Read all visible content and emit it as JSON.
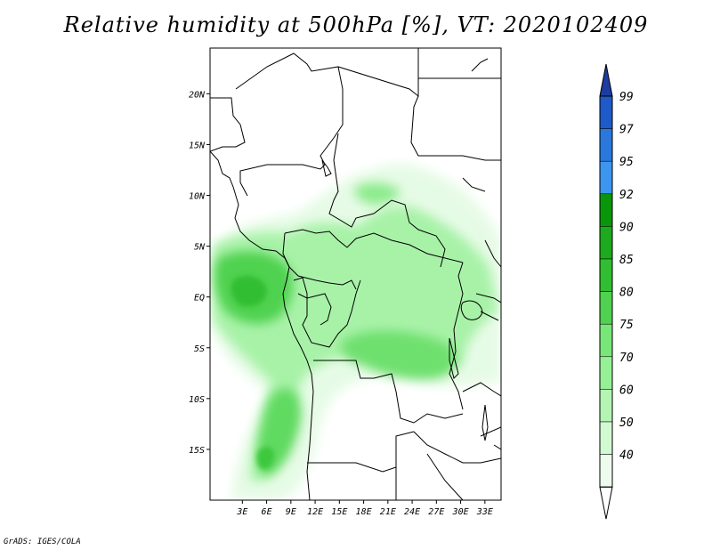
{
  "title": "Relative humidity at 500hPa [%], VT: 2020102409",
  "credit": "GrADS: IGES/COLA",
  "map": {
    "lon_range": [
      -1,
      35
    ],
    "lat_range": [
      -20,
      24.5
    ],
    "lat_ticks": [
      {
        "value": 20,
        "label": "20N"
      },
      {
        "value": 15,
        "label": "15N"
      },
      {
        "value": 10,
        "label": "10N"
      },
      {
        "value": 5,
        "label": "5N"
      },
      {
        "value": 0,
        "label": "EQ"
      },
      {
        "value": -5,
        "label": "5S"
      },
      {
        "value": -10,
        "label": "10S"
      },
      {
        "value": -15,
        "label": "15S"
      }
    ],
    "lon_ticks": [
      {
        "value": 3,
        "label": "3E"
      },
      {
        "value": 6,
        "label": "6E"
      },
      {
        "value": 9,
        "label": "9E"
      },
      {
        "value": 12,
        "label": "12E"
      },
      {
        "value": 15,
        "label": "15E"
      },
      {
        "value": 18,
        "label": "18E"
      },
      {
        "value": 21,
        "label": "21E"
      },
      {
        "value": 24,
        "label": "24E"
      },
      {
        "value": 27,
        "label": "27E"
      },
      {
        "value": 30,
        "label": "30E"
      },
      {
        "value": 33,
        "label": "33E"
      }
    ]
  },
  "colorbar": {
    "levels": [
      {
        "label": "99",
        "color": "#1e5ac8"
      },
      {
        "label": "97",
        "color": "#2a78dc"
      },
      {
        "label": "95",
        "color": "#3c96f0"
      },
      {
        "label": "92",
        "color": "#0a960a"
      },
      {
        "label": "90",
        "color": "#1eaa1e"
      },
      {
        "label": "85",
        "color": "#32be32"
      },
      {
        "label": "80",
        "color": "#50d250"
      },
      {
        "label": "75",
        "color": "#78e678"
      },
      {
        "label": "70",
        "color": "#96f096"
      },
      {
        "label": "60",
        "color": "#b4f5b4"
      },
      {
        "label": "50",
        "color": "#d2fad2"
      },
      {
        "label": "40",
        "color": "#eefcee"
      }
    ],
    "top_triangle_color": "#1e3ca0",
    "bottom_triangle_color": "#ffffff"
  }
}
